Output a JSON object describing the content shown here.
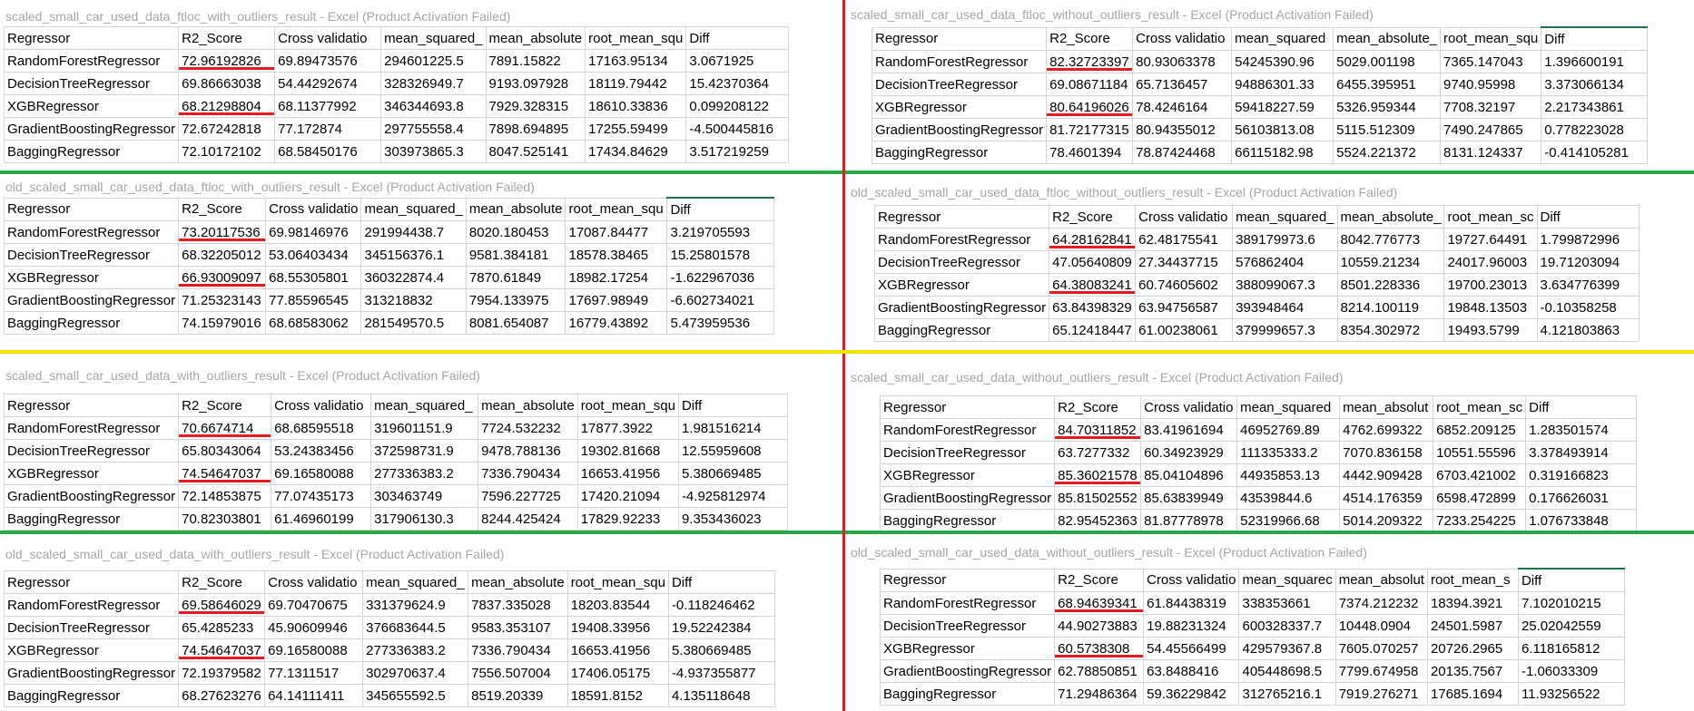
{
  "colors": {
    "red": "#e8191f",
    "green": "#28a745",
    "yellow": "#f2e300",
    "title_gray": "#a6a6a6"
  },
  "headers": [
    "Regressor",
    "R2_Score",
    "Cross validatio",
    "mean_squared_",
    "mean_absolute_",
    "root_mean_squ",
    "Diff"
  ],
  "panels": [
    {
      "title": "scaled_small_car_used_data_ftloc_with_outliers_result - Excel (Product Activation Failed)",
      "headers": [
        "Regressor",
        "R2_Score",
        "Cross validatio",
        "mean_squared_",
        "mean_absolute",
        "root_mean_squ",
        "Diff"
      ],
      "rows": [
        [
          "RandomForestRegressor",
          "72.96192826",
          "69.89473576",
          "294601225.5",
          "7891.15822",
          "17163.95134",
          "3.0671925"
        ],
        [
          "DecisionTreeRegressor",
          "69.86663038",
          "54.44292674",
          "328326949.7",
          "9193.097928",
          "18119.79442",
          "15.42370364"
        ],
        [
          "XGBRegressor",
          "68.21298804",
          "68.11377992",
          "346344693.8",
          "7929.328315",
          "18610.33836",
          "0.099208122"
        ],
        [
          "GradientBoostingRegressor",
          "72.67242818",
          "77.172874",
          "297755558.4",
          "7898.694895",
          "17255.59499",
          "-4.500445816"
        ],
        [
          "BaggingRegressor",
          "72.10172102",
          "68.58450176",
          "303973865.3",
          "8047.525141",
          "17434.84629",
          "3.517219259"
        ]
      ]
    },
    {
      "title": "scaled_small_car_used_data_ftloc_without_outliers_result - Excel (Product Activation Failed)",
      "headers": [
        "Regressor",
        "R2_Score",
        "Cross validatio",
        "mean_squared",
        "mean_absolute_",
        "root_mean_squ",
        "Diff"
      ],
      "rows": [
        [
          "RandomForestRegressor",
          "82.32723397",
          "80.93063378",
          "54245390.96",
          "5029.001198",
          "7365.147043",
          "1.396600191"
        ],
        [
          "DecisionTreeRegressor",
          "69.08671184",
          "65.7136457",
          "94886301.33",
          "6455.395951",
          "9740.95998",
          "3.373066134"
        ],
        [
          "XGBRegressor",
          "80.64196026",
          "78.4246164",
          "59418227.59",
          "5326.959344",
          "7708.32197",
          "2.217343861"
        ],
        [
          "GradientBoostingRegressor",
          "81.72177315",
          "80.94355012",
          "56103813.08",
          "5115.512309",
          "7490.247865",
          "0.778223028"
        ],
        [
          "BaggingRegressor",
          "78.4601394",
          "78.87424468",
          "66115182.98",
          "5524.221372",
          "8131.124337",
          "-0.414105281"
        ]
      ]
    },
    {
      "title": "old_scaled_small_car_used_data_ftloc_with_outliers_result - Excel (Product Activation Failed)",
      "headers": [
        "Regressor",
        "R2_Score",
        "Cross validatio",
        "mean_squared_",
        "mean_absolute",
        "root_mean_squ",
        "Diff"
      ],
      "rows": [
        [
          "RandomForestRegressor",
          "73.20117536",
          "69.98146976",
          "291994438.7",
          "8020.180453",
          "17087.84477",
          "3.219705593"
        ],
        [
          "DecisionTreeRegressor",
          "68.32205012",
          "53.06403434",
          "345156376.1",
          "9581.384181",
          "18578.38465",
          "15.25801578"
        ],
        [
          "XGBRegressor",
          "66.93009097",
          "68.55305801",
          "360322874.4",
          "7870.61849",
          "18982.17254",
          "-1.622967036"
        ],
        [
          "GradientBoostingRegressor",
          "71.25323143",
          "77.85596545",
          "313218832",
          "7954.133975",
          "17697.98949",
          "-6.602734021"
        ],
        [
          "BaggingRegressor",
          "74.15979016",
          "68.68583062",
          "281549570.5",
          "8081.654087",
          "16779.43892",
          "5.473959536"
        ]
      ]
    },
    {
      "title": "old_scaled_small_car_used_data_ftloc_without_outliers_result - Excel (Product Activation Failed)",
      "headers": [
        "Regressor",
        "R2_Score",
        "Cross validatio",
        "mean_squared_",
        "mean_absolute_",
        "root_mean_sc",
        "Diff"
      ],
      "rows": [
        [
          "RandomForestRegressor",
          "64.28162841",
          "62.48175541",
          "389179973.6",
          "8042.776773",
          "19727.64491",
          "1.799872996"
        ],
        [
          "DecisionTreeRegressor",
          "47.05640809",
          "27.34437715",
          "576862404",
          "10559.21234",
          "24017.96003",
          "19.71203094"
        ],
        [
          "XGBRegressor",
          "64.38083241",
          "60.74605602",
          "388099067.3",
          "8501.228336",
          "19700.23013",
          "3.634776399"
        ],
        [
          "GradientBoostingRegressor",
          "63.84398329",
          "63.94756587",
          "393948464",
          "8214.100119",
          "19848.13503",
          "-0.10358258"
        ],
        [
          "BaggingRegressor",
          "65.12418447",
          "61.00238061",
          "379999657.3",
          "8354.302972",
          "19493.5799",
          "4.121803863"
        ]
      ]
    },
    {
      "title": "scaled_small_car_used_data_with_outliers_result - Excel (Product Activation Failed)",
      "headers": [
        "Regressor",
        "R2_Score",
        "Cross validatio",
        "mean_squared_",
        "mean_absolute",
        "root_mean_squ",
        "Diff"
      ],
      "rows": [
        [
          "RandomForestRegressor",
          "70.6674714",
          "68.68595518",
          "319601151.9",
          "7724.532232",
          "17877.3922",
          "1.981516214"
        ],
        [
          "DecisionTreeRegressor",
          "65.80343064",
          "53.24383456",
          "372598731.9",
          "9478.788136",
          "19302.81668",
          "12.55959608"
        ],
        [
          "XGBRegressor",
          "74.54647037",
          "69.16580088",
          "277336383.2",
          "7336.790434",
          "16653.41956",
          "5.380669485"
        ],
        [
          "GradientBoostingRegressor",
          "72.14853875",
          "77.07435173",
          "303463749",
          "7596.227725",
          "17420.21094",
          "-4.925812974"
        ],
        [
          "BaggingRegressor",
          "70.82303801",
          "61.46960199",
          "317906130.3",
          "8244.425424",
          "17829.92233",
          "9.353436023"
        ]
      ]
    },
    {
      "title": "scaled_small_car_used_data_without_outliers_result - Excel (Product Activation Failed)",
      "headers": [
        "Regressor",
        "R2_Score",
        "Cross validatio",
        "mean_squared",
        "mean_absolut",
        "root_mean_sc",
        "Diff"
      ],
      "rows": [
        [
          "RandomForestRegressor",
          "84.70311852",
          "83.41961694",
          "46952769.89",
          "4762.699322",
          "6852.209125",
          "1.283501574"
        ],
        [
          "DecisionTreeRegressor",
          "63.7277332",
          "60.34923929",
          "111335333.2",
          "7070.836158",
          "10551.55596",
          "3.378493914"
        ],
        [
          "XGBRegressor",
          "85.36021578",
          "85.04104896",
          "44935853.13",
          "4442.909428",
          "6703.421002",
          "0.319166823"
        ],
        [
          "GradientBoostingRegressor",
          "85.81502552",
          "85.63839949",
          "43539844.6",
          "4514.176359",
          "6598.472899",
          "0.176626031"
        ],
        [
          "BaggingRegressor",
          "82.95452363",
          "81.87778978",
          "52319966.68",
          "5014.209322",
          "7233.254225",
          "1.076733848"
        ]
      ]
    },
    {
      "title": "old_scaled_small_car_used_data_with_outliers_result - Excel (Product Activation Failed)",
      "headers": [
        "Regressor",
        "R2_Score",
        "Cross validatio",
        "mean_squared_",
        "mean_absolute",
        "root_mean_squ",
        "Diff"
      ],
      "rows": [
        [
          "RandomForestRegressor",
          "69.58646029",
          "69.70470675",
          "331379624.9",
          "7837.335028",
          "18203.83544",
          "-0.118246462"
        ],
        [
          "DecisionTreeRegressor",
          "65.4285233",
          "45.90609946",
          "376683644.5",
          "9583.353107",
          "19408.33956",
          "19.52242384"
        ],
        [
          "XGBRegressor",
          "74.54647037",
          "69.16580088",
          "277336383.2",
          "7336.790434",
          "16653.41956",
          "5.380669485"
        ],
        [
          "GradientBoostingRegressor",
          "72.19379582",
          "77.1311517",
          "302970637.4",
          "7556.507004",
          "17406.05175",
          "-4.937355877"
        ],
        [
          "BaggingRegressor",
          "68.27623276",
          "64.14111411",
          "345655592.5",
          "8519.20339",
          "18591.8152",
          "4.135118648"
        ]
      ]
    },
    {
      "title": "old_scaled_small_car_used_data_without_outliers_result - Excel (Product Activation Failed)",
      "headers": [
        "Regressor",
        "R2_Score",
        "Cross validatio",
        "mean_squarec",
        "mean_absolut",
        "root_mean_s",
        "Diff"
      ],
      "rows": [
        [
          "RandomForestRegressor",
          "68.94639341",
          "61.84438319",
          "338353661",
          "7374.212232",
          "18394.3921",
          "7.102010215"
        ],
        [
          "DecisionTreeRegressor",
          "44.90273883",
          "19.88231324",
          "600328337.7",
          "10448.0904",
          "24501.5987",
          "25.02042559"
        ],
        [
          "XGBRegressor",
          "60.5738308",
          "54.45566499",
          "429579367.8",
          "7605.070257",
          "20726.2965",
          "6.118165812"
        ],
        [
          "GradientBoostingRegressor",
          "62.78850851",
          "63.8488416",
          "405448698.5",
          "7799.674958",
          "20135.7567",
          "-1.06033309"
        ],
        [
          "BaggingRegressor",
          "71.29486364",
          "59.36229842",
          "312765216.1",
          "7919.276271",
          "17685.1694",
          "11.93256522"
        ]
      ]
    }
  ]
}
